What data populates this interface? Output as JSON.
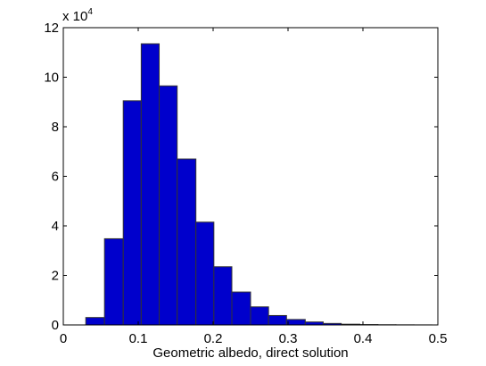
{
  "chart_data": {
    "type": "bar",
    "title": "",
    "xlabel": "Geometric albedo, direct solution",
    "ylabel": "",
    "xlim": [
      0,
      0.5
    ],
    "ylim": [
      0,
      120000
    ],
    "x_ticks": [
      "0",
      "0.1",
      "0.2",
      "0.3",
      "0.4",
      "0.5"
    ],
    "y_ticks": [
      "0",
      "2",
      "4",
      "6",
      "8",
      "10",
      "12"
    ],
    "y_multiplier": {
      "base": "x 10",
      "exponent": "4"
    },
    "bar_color": "#0000cc",
    "bar_edge_color": "#333333",
    "grid": false,
    "bins": [
      {
        "left": 0.03,
        "right": 0.055,
        "value": 3000
      },
      {
        "left": 0.055,
        "right": 0.08,
        "value": 34800
      },
      {
        "left": 0.08,
        "right": 0.104,
        "value": 90500
      },
      {
        "left": 0.104,
        "right": 0.128,
        "value": 113500
      },
      {
        "left": 0.128,
        "right": 0.152,
        "value": 96500
      },
      {
        "left": 0.152,
        "right": 0.177,
        "value": 67000
      },
      {
        "left": 0.177,
        "right": 0.201,
        "value": 41500
      },
      {
        "left": 0.201,
        "right": 0.225,
        "value": 23500
      },
      {
        "left": 0.225,
        "right": 0.25,
        "value": 13300
      },
      {
        "left": 0.25,
        "right": 0.274,
        "value": 7300
      },
      {
        "left": 0.274,
        "right": 0.298,
        "value": 3800
      },
      {
        "left": 0.298,
        "right": 0.323,
        "value": 2200
      },
      {
        "left": 0.323,
        "right": 0.347,
        "value": 1200
      },
      {
        "left": 0.347,
        "right": 0.371,
        "value": 600
      },
      {
        "left": 0.371,
        "right": 0.396,
        "value": 300
      },
      {
        "left": 0.396,
        "right": 0.42,
        "value": 150
      },
      {
        "left": 0.42,
        "right": 0.444,
        "value": 80
      },
      {
        "left": 0.444,
        "right": 0.468,
        "value": 40
      },
      {
        "left": 0.468,
        "right": 0.492,
        "value": 20
      }
    ]
  }
}
